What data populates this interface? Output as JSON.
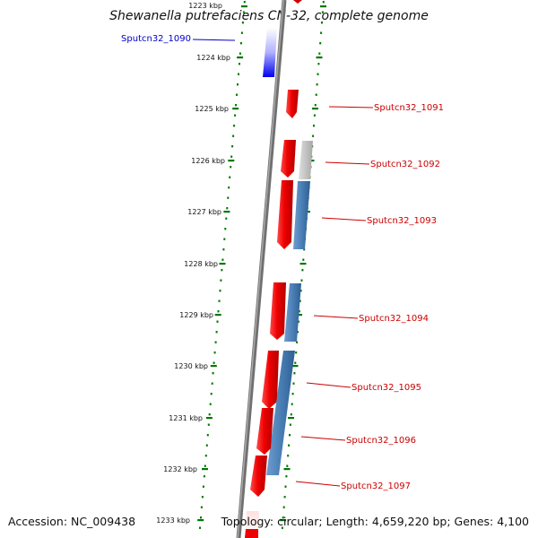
{
  "title": "Shewanella putrefaciens CN-32, complete genome",
  "footer": {
    "accession": "Accession: NC_009438",
    "topology": "Topology: circular; Length: 4,659,220 bp; Genes: 4,100"
  },
  "colors": {
    "forward_cds": "#ee0000",
    "reverse_cds": "#0000ee",
    "blast_hit": "#4a7fb5",
    "blast_partial": "#c8c8c8",
    "ruler_tick": "#007700",
    "backbone": "#808080"
  },
  "map": {
    "kbp_labels": [
      "1223 kbp",
      "1224 kbp",
      "1225 kbp",
      "1226 kbp",
      "1227 kbp",
      "1228 kbp",
      "1229 kbp",
      "1230 kbp",
      "1231 kbp",
      "1232 kbp",
      "1233 kbp"
    ],
    "genes": [
      {
        "id": "Sputcn32_1090",
        "strand": "reverse",
        "color": "#0000cc"
      },
      {
        "id": "Sputcn32_1091",
        "strand": "forward",
        "color": "#cc0000"
      },
      {
        "id": "Sputcn32_1092",
        "strand": "forward",
        "color": "#cc0000"
      },
      {
        "id": "Sputcn32_1093",
        "strand": "forward",
        "color": "#cc0000"
      },
      {
        "id": "Sputcn32_1094",
        "strand": "forward",
        "color": "#cc0000"
      },
      {
        "id": "Sputcn32_1095",
        "strand": "forward",
        "color": "#cc0000"
      },
      {
        "id": "Sputcn32_1096",
        "strand": "forward",
        "color": "#cc0000"
      },
      {
        "id": "Sputcn32_1097",
        "strand": "forward",
        "color": "#cc0000"
      }
    ]
  }
}
